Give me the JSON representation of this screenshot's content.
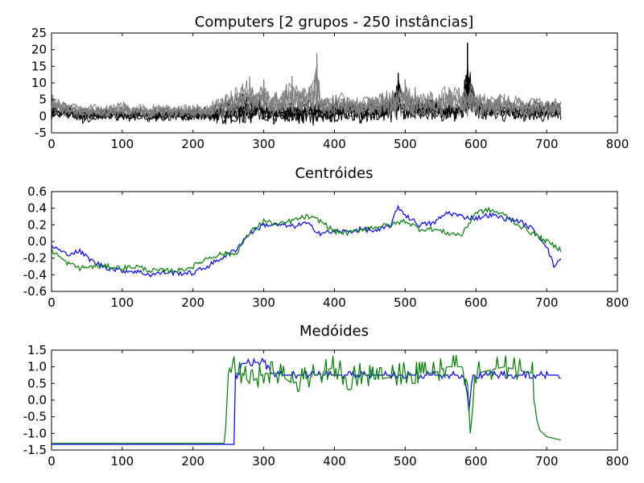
{
  "chart_data": [
    {
      "type": "line",
      "title": "Computers [2 grupos - 250 instâncias]",
      "xlabel": "",
      "ylabel": "",
      "xlim": [
        0,
        800
      ],
      "ylim": [
        -5,
        25
      ],
      "xticks": [
        0,
        100,
        200,
        300,
        400,
        500,
        600,
        700,
        800
      ],
      "yticks": [
        -5,
        0,
        5,
        10,
        15,
        20,
        25
      ],
      "grid": false,
      "series": [
        {
          "color": "#000000",
          "description_points": "dense black instance lines, x 0-720",
          "x": [
            0,
            20,
            40,
            60,
            80,
            100,
            120,
            140,
            160,
            180,
            200,
            220,
            240,
            260,
            280,
            300,
            320,
            340,
            360,
            380,
            400,
            420,
            440,
            460,
            480,
            490,
            500,
            520,
            540,
            560,
            580,
            588,
            600,
            620,
            640,
            660,
            680,
            700,
            720
          ],
          "upper": [
            4,
            5,
            4,
            3,
            3,
            3,
            3,
            3,
            3,
            3,
            3,
            3,
            5,
            7,
            8,
            6,
            5,
            5,
            6,
            7,
            5,
            6,
            5,
            5,
            6,
            13,
            6,
            6,
            7,
            5,
            5,
            22,
            6,
            6,
            5,
            5,
            5,
            5,
            5
          ],
          "lower": [
            -2,
            -2,
            -3,
            -2,
            -2,
            -2,
            -2,
            -2,
            -2,
            -2,
            -2,
            -2,
            -3,
            -4,
            -3,
            -3,
            -3,
            -3,
            -4,
            -3,
            -3,
            -2,
            -3,
            -2,
            -3,
            -2,
            -3,
            -2,
            -2,
            -2,
            -2,
            -2,
            -2,
            -2,
            -2,
            -2,
            -2,
            -2,
            -2
          ]
        },
        {
          "color": "#808080",
          "description_points": "dense gray instance lines, x 0-720",
          "x": [
            0,
            20,
            40,
            60,
            80,
            100,
            120,
            140,
            160,
            180,
            200,
            220,
            240,
            260,
            280,
            300,
            320,
            340,
            360,
            375,
            380,
            400,
            420,
            440,
            460,
            480,
            500,
            520,
            540,
            560,
            580,
            600,
            620,
            640,
            660,
            680,
            700,
            720
          ],
          "upper": [
            8,
            5,
            4,
            4,
            4,
            5,
            4,
            4,
            4,
            4,
            4,
            4,
            7,
            10,
            12,
            11,
            8,
            12,
            10,
            19,
            8,
            8,
            7,
            7,
            8,
            9,
            11,
            9,
            8,
            10,
            10,
            10,
            7,
            8,
            7,
            7,
            6,
            6
          ],
          "lower": [
            0,
            -1,
            -1,
            -1,
            -1,
            -1,
            -1,
            -1,
            -1,
            -1,
            -1,
            -1,
            -1,
            -1,
            -1,
            -1,
            -1,
            -1,
            -1,
            -1,
            -1,
            -1,
            -1,
            -1,
            -1,
            -1,
            -1,
            -1,
            -1,
            -1,
            -1,
            -1,
            -1,
            -1,
            -1,
            -1,
            -1,
            -1
          ]
        }
      ]
    },
    {
      "type": "line",
      "title": "Centróides",
      "xlabel": "",
      "ylabel": "",
      "xlim": [
        0,
        800
      ],
      "ylim": [
        -0.6,
        0.6
      ],
      "xticks": [
        0,
        100,
        200,
        300,
        400,
        500,
        600,
        700,
        800
      ],
      "yticks": [
        -0.6,
        -0.4,
        -0.2,
        0.0,
        0.2,
        0.4,
        0.6
      ],
      "grid": false,
      "series": [
        {
          "color": "#0000ff",
          "x": [
            0,
            20,
            40,
            60,
            80,
            100,
            120,
            140,
            160,
            180,
            200,
            220,
            240,
            260,
            280,
            300,
            320,
            340,
            360,
            380,
            400,
            420,
            440,
            460,
            480,
            490,
            500,
            520,
            540,
            560,
            580,
            600,
            620,
            640,
            660,
            680,
            700,
            710,
            720
          ],
          "y": [
            -0.05,
            -0.15,
            -0.12,
            -0.25,
            -0.32,
            -0.35,
            -0.36,
            -0.4,
            -0.37,
            -0.38,
            -0.38,
            -0.3,
            -0.2,
            -0.1,
            0.1,
            0.2,
            0.2,
            0.18,
            0.22,
            0.1,
            0.12,
            0.12,
            0.15,
            0.12,
            0.2,
            0.42,
            0.32,
            0.2,
            0.22,
            0.35,
            0.3,
            0.28,
            0.32,
            0.28,
            0.25,
            0.15,
            -0.05,
            -0.3,
            -0.2
          ]
        },
        {
          "color": "#008000",
          "x": [
            0,
            20,
            40,
            60,
            80,
            100,
            120,
            140,
            160,
            180,
            200,
            220,
            240,
            260,
            280,
            300,
            320,
            340,
            360,
            380,
            400,
            420,
            440,
            460,
            480,
            500,
            520,
            540,
            560,
            580,
            600,
            620,
            640,
            660,
            680,
            700,
            720
          ],
          "y": [
            -0.1,
            -0.25,
            -0.32,
            -0.3,
            -0.3,
            -0.32,
            -0.3,
            -0.35,
            -0.35,
            -0.35,
            -0.3,
            -0.2,
            -0.15,
            -0.15,
            0.1,
            0.25,
            0.2,
            0.25,
            0.3,
            0.25,
            0.12,
            0.1,
            0.15,
            0.18,
            0.2,
            0.25,
            0.15,
            0.15,
            0.1,
            0.08,
            0.35,
            0.38,
            0.32,
            0.2,
            0.1,
            0.0,
            -0.1
          ]
        }
      ]
    },
    {
      "type": "line",
      "title": "Medóides",
      "xlabel": "",
      "ylabel": "",
      "xlim": [
        0,
        800
      ],
      "ylim": [
        -1.5,
        1.5
      ],
      "xticks": [
        0,
        100,
        200,
        300,
        400,
        500,
        600,
        700,
        800
      ],
      "yticks": [
        -1.5,
        -1.0,
        -0.5,
        0.0,
        0.5,
        1.0,
        1.5
      ],
      "grid": false,
      "series": [
        {
          "color": "#0000ff",
          "x": [
            0,
            100,
            200,
            252,
            258,
            260,
            265,
            270,
            300,
            310,
            315,
            320,
            400,
            500,
            580,
            585,
            590,
            595,
            600,
            700,
            720
          ],
          "y": [
            -1.33,
            -1.33,
            -1.33,
            -1.33,
            -1.33,
            0.7,
            0.8,
            1.1,
            1.15,
            0.8,
            0.8,
            0.75,
            0.75,
            0.75,
            0.75,
            0.6,
            -0.35,
            0.75,
            0.75,
            0.75,
            0.75
          ]
        },
        {
          "color": "#008000",
          "x": [
            0,
            100,
            200,
            245,
            250,
            255,
            260,
            270,
            280,
            300,
            320,
            340,
            380,
            400,
            420,
            440,
            460,
            500,
            540,
            560,
            580,
            588,
            592,
            600,
            640,
            680,
            685,
            690,
            700,
            720
          ],
          "y": [
            -1.3,
            -1.3,
            -1.3,
            -1.3,
            0.8,
            1.2,
            0.8,
            0.8,
            0.5,
            0.8,
            0.8,
            0.5,
            0.8,
            1.0,
            0.6,
            0.8,
            0.6,
            0.8,
            0.8,
            1.0,
            1.0,
            0.5,
            -1.0,
            0.8,
            1.0,
            0.8,
            -0.5,
            -0.9,
            -1.1,
            -1.2
          ]
        }
      ]
    }
  ]
}
